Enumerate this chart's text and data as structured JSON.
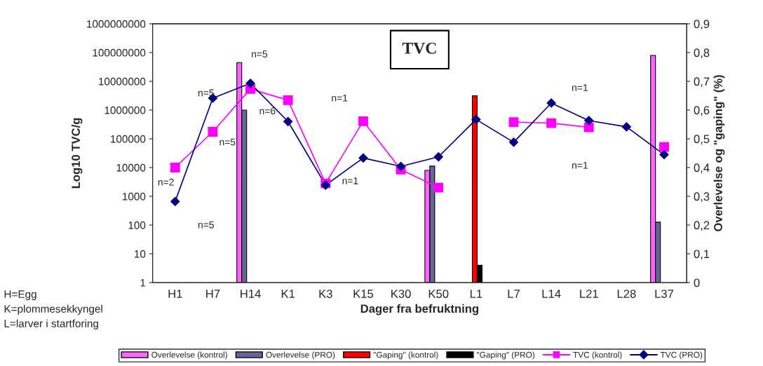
{
  "chart_data": {
    "type": "line",
    "title": "TVC",
    "xlabel": "Dager fra befruktning",
    "ylabel": "Log10 TVC/g",
    "y2label": "Overlevelse og \"gaping\" (%)",
    "categories": [
      "H1",
      "H7",
      "H14",
      "K1",
      "K3",
      "K15",
      "K30",
      "K50",
      "L1",
      "L7",
      "L14",
      "L21",
      "L28",
      "L37"
    ],
    "series": [
      {
        "name": "Overlevelse (kontrol)",
        "type": "bar",
        "axis": "y2",
        "color": "#ff66ff",
        "values": [
          null,
          null,
          0.765,
          null,
          null,
          null,
          null,
          0.39,
          null,
          null,
          null,
          null,
          null,
          0.79
        ]
      },
      {
        "name": "Overlevelse (PRO)",
        "type": "bar",
        "axis": "y2",
        "color": "#666699",
        "values": [
          null,
          null,
          0.6,
          null,
          null,
          null,
          null,
          0.405,
          null,
          null,
          null,
          null,
          null,
          0.21
        ]
      },
      {
        "name": "\"Gaping\" (kontrol)",
        "type": "bar",
        "axis": "y2",
        "color": "#ff0000",
        "values": [
          null,
          null,
          null,
          null,
          null,
          null,
          null,
          null,
          0.65,
          null,
          null,
          null,
          null,
          null
        ]
      },
      {
        "name": "\"Gaping\" (PRO)",
        "type": "bar",
        "axis": "y2",
        "color": "#000000",
        "values": [
          null,
          null,
          null,
          null,
          null,
          null,
          null,
          null,
          0.06,
          null,
          null,
          null,
          null,
          null
        ]
      },
      {
        "name": "TVC (kontrol)",
        "marker": "square",
        "color": "#ff00ff",
        "values": [
          10000,
          175000,
          5400000,
          2200000,
          2800,
          410000,
          8500,
          2000,
          null,
          380000,
          350000,
          250000,
          null,
          52000
        ]
      },
      {
        "name": "TVC (PRO)",
        "marker": "diamond",
        "color": "#000080",
        "values": [
          660,
          2600000,
          8500000,
          400000,
          2450,
          21500,
          11000,
          23500,
          470000,
          76000,
          1750000,
          430000,
          260000,
          28000
        ]
      }
    ],
    "log": "y",
    "ylim": [
      1,
      1000000000
    ],
    "yticks": [
      1,
      10,
      100,
      1000,
      10000,
      100000,
      1000000,
      10000000,
      100000000,
      1000000000
    ],
    "y2lim": [
      0,
      0.9
    ],
    "y2ticks": [
      {
        "value": 0,
        "label": "0"
      },
      {
        "value": 0.1,
        "label": "0,1"
      },
      {
        "value": 0.2,
        "label": "0,2"
      },
      {
        "value": 0.3,
        "label": "0,3"
      },
      {
        "value": 0.4,
        "label": "0,4"
      },
      {
        "value": 0.5,
        "label": "0,5"
      },
      {
        "value": 0.6,
        "label": "0,6"
      },
      {
        "value": 0.7,
        "label": "0,7"
      },
      {
        "value": 0.8,
        "label": "0,8"
      },
      {
        "value": 0.9,
        "label": "0,9"
      }
    ],
    "grid": false,
    "legend": "bottom",
    "annotations": [
      "n=2",
      "n=5",
      "n=5",
      "n=5",
      "n=5",
      "n=6",
      "n=1",
      "n=1",
      "n=1",
      "n=1",
      "H=Egg\nK=plommesekkyngel\nL=larver i startforing"
    ]
  }
}
